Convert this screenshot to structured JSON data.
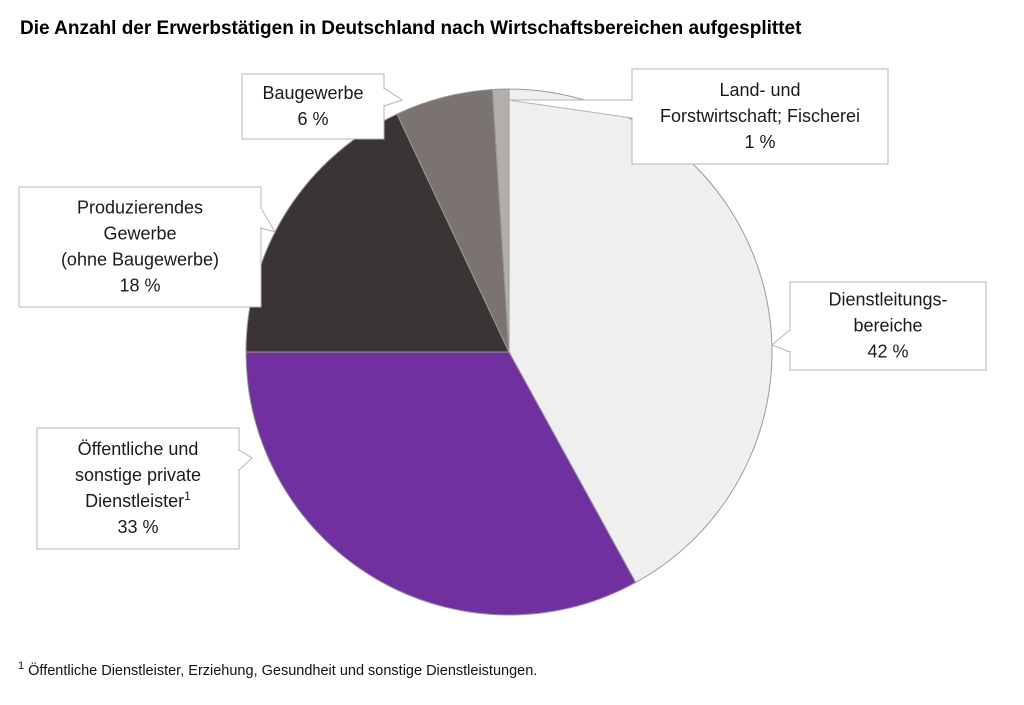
{
  "chart_data": {
    "type": "pie",
    "title": "Die Anzahl der Erwerbstätigen in Deutschland nach Wirtschaftsbereichen aufgesplittet",
    "unit": "%",
    "slices": [
      {
        "lines": [
          "Dienstleitungs-",
          "bereiche"
        ],
        "value": 42,
        "color": "#f0eff0"
      },
      {
        "lines": [
          "Öffentliche und",
          "sonstige private",
          "Dienstleister"
        ],
        "sup": "1",
        "value": 33,
        "color": "#70309f"
      },
      {
        "lines": [
          "Produzierendes",
          "Gewerbe",
          "(ohne Baugewerbe)"
        ],
        "value": 18,
        "color": "#3a3534"
      },
      {
        "lines": [
          "Baugewerbe"
        ],
        "value": 6,
        "color": "#7a7370"
      },
      {
        "lines": [
          "Land- und",
          "Forstwirtschaft; Fischerei"
        ],
        "value": 1,
        "color": "#b1aeac"
      }
    ],
    "value_labels": [
      "42 %",
      "33 %",
      "18 %",
      "6 %",
      "1 %"
    ]
  },
  "footnote": {
    "marker": "1",
    "text": "Öffentliche Dienstleister, Erziehung, Gesundheit und sonstige Dienstleistungen."
  }
}
